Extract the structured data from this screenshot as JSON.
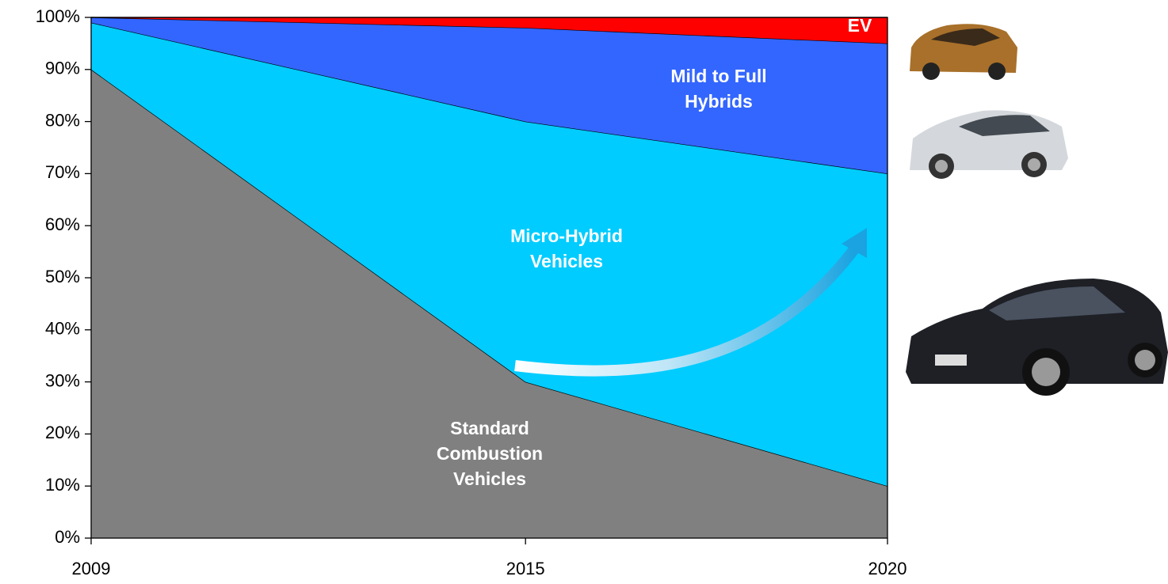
{
  "chart_data": {
    "type": "stacked-area",
    "x": [
      2009,
      2015,
      2020
    ],
    "xlim": [
      2009,
      2020
    ],
    "xticks": [
      2009,
      2015,
      2020
    ],
    "ylim": [
      0,
      100
    ],
    "yticks": [
      {
        "value": 0,
        "label": "0%"
      },
      {
        "value": 10,
        "label": "10%"
      },
      {
        "value": 20,
        "label": "20%"
      },
      {
        "value": 30,
        "label": "30%"
      },
      {
        "value": 40,
        "label": "40%"
      },
      {
        "value": 50,
        "label": "50%"
      },
      {
        "value": 60,
        "label": "60%"
      },
      {
        "value": 70,
        "label": "70%"
      },
      {
        "value": 80,
        "label": "80%"
      },
      {
        "value": 90,
        "label": "90%"
      },
      {
        "value": 100,
        "label": "100%"
      }
    ],
    "series": [
      {
        "name": "Standard Combustion Vehicles",
        "color": "#808080",
        "values": [
          90,
          30,
          10
        ]
      },
      {
        "name": "Micro-Hybrid Vehicles",
        "color": "#00ccff",
        "values": [
          9,
          50,
          60
        ]
      },
      {
        "name": "Mild to Full Hybrids",
        "color": "#3366ff",
        "values": [
          1,
          18,
          25
        ]
      },
      {
        "name": "EV",
        "color": "#ff0000",
        "values": [
          0,
          2,
          5
        ]
      }
    ]
  }
}
